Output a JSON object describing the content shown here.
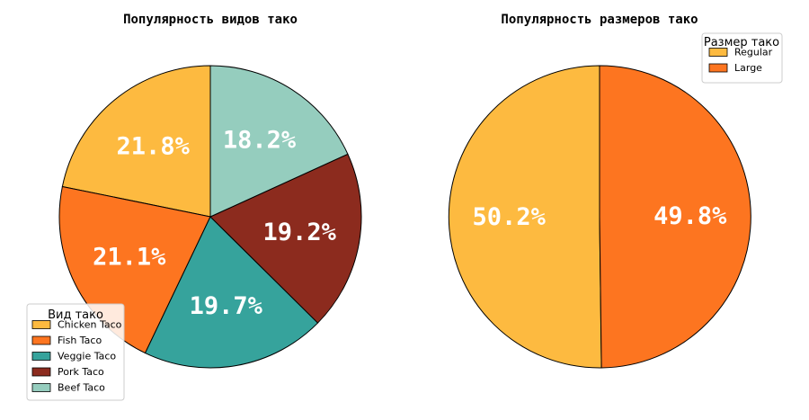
{
  "chart_data": [
    {
      "type": "pie",
      "title": "Популярность видов тако",
      "categories": [
        "Chicken Taco",
        "Fish Taco",
        "Veggie Taco",
        "Pork Taco",
        "Beef Taco"
      ],
      "values": [
        21.8,
        21.1,
        19.7,
        19.2,
        18.2
      ],
      "value_labels": [
        "21.8%",
        "21.1%",
        "19.7%",
        "19.2%",
        "18.2%"
      ],
      "colors": [
        "#FDBA40",
        "#FD7520",
        "#36A39C",
        "#8C2B1E",
        "#95CDBE"
      ],
      "start_angle": 90,
      "direction": "counterclockwise",
      "legend": {
        "title": "Вид тако",
        "position": "lower-left"
      }
    },
    {
      "type": "pie",
      "title": "Популярность размеров тако",
      "categories": [
        "Regular",
        "Large"
      ],
      "values": [
        50.2,
        49.8
      ],
      "value_labels": [
        "50.2%",
        "49.8%"
      ],
      "colors": [
        "#FDBA40",
        "#FD7520"
      ],
      "start_angle": 90,
      "direction": "counterclockwise",
      "legend": {
        "title": "Размер тако",
        "position": "upper-right"
      }
    }
  ]
}
